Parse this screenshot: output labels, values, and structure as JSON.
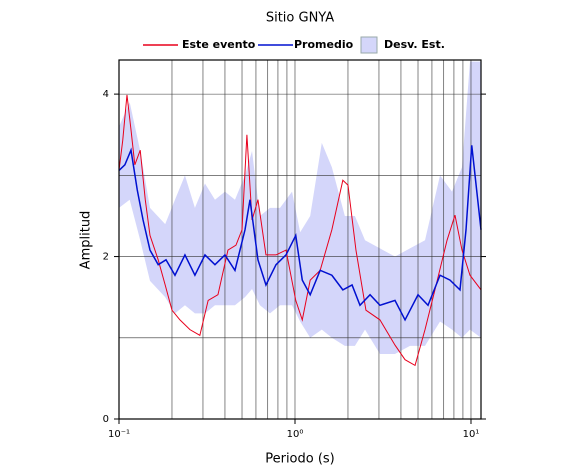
{
  "chart_data": {
    "type": "line",
    "title": "Sitio GNYA",
    "x_label": "Periodo (s)",
    "y_label": "Amplitud",
    "log_x": true,
    "grid": true,
    "legend": "top",
    "xlim": [
      0.1,
      11.4
    ],
    "ylim": [
      0,
      4.42
    ],
    "xticks": [
      {
        "value": 0.1,
        "label": "10⁻¹"
      },
      {
        "value": 1,
        "label": "10⁰"
      },
      {
        "value": 10,
        "label": "10¹"
      }
    ],
    "xminor": [
      0.2,
      0.3,
      0.4,
      0.5,
      0.6,
      0.7,
      0.8,
      0.9,
      2,
      3,
      4,
      5,
      6,
      7,
      8,
      9
    ],
    "yticks": [
      0,
      2,
      4
    ],
    "yminor": [
      1,
      3
    ],
    "series": [
      {
        "name": "Este evento",
        "color": "#e8001c",
        "x": [
          0.1,
          0.105,
          0.111,
          0.117,
          0.123,
          0.132,
          0.141,
          0.15,
          0.167,
          0.183,
          0.2,
          0.222,
          0.253,
          0.288,
          0.321,
          0.365,
          0.416,
          0.462,
          0.5,
          0.533,
          0.57,
          0.616,
          0.684,
          0.78,
          0.889,
          1.01,
          1.1,
          1.22,
          1.39,
          1.62,
          1.87,
          2.0,
          2.22,
          2.53,
          3.04,
          3.7,
          4.22,
          4.81,
          5.48,
          6.24,
          7.31,
          8.11,
          8.89,
          9.87,
          11.4
        ],
        "values": [
          3.06,
          3.43,
          3.99,
          3.56,
          3.13,
          3.31,
          2.7,
          2.26,
          1.96,
          1.65,
          1.34,
          1.22,
          1.1,
          1.03,
          1.46,
          1.53,
          2.08,
          2.14,
          2.33,
          3.5,
          2.45,
          2.7,
          2.02,
          2.02,
          2.08,
          1.46,
          1.22,
          1.71,
          1.83,
          2.33,
          2.94,
          2.88,
          2.08,
          1.34,
          1.22,
          0.91,
          0.73,
          0.66,
          1.1,
          1.59,
          2.2,
          2.51,
          2.08,
          1.77,
          1.59
        ]
      },
      {
        "name": "Promedio",
        "color": "#0010d0",
        "x": [
          0.1,
          0.108,
          0.117,
          0.127,
          0.137,
          0.15,
          0.167,
          0.185,
          0.208,
          0.237,
          0.27,
          0.308,
          0.351,
          0.4,
          0.456,
          0.52,
          0.555,
          0.616,
          0.684,
          0.78,
          0.889,
          1.01,
          1.1,
          1.22,
          1.39,
          1.62,
          1.87,
          2.11,
          2.34,
          2.67,
          3.04,
          3.7,
          4.22,
          5.0,
          5.7,
          6.67,
          7.6,
          8.66,
          9.37,
          10.1,
          11.4
        ],
        "values": [
          3.06,
          3.13,
          3.31,
          2.82,
          2.45,
          2.08,
          1.9,
          1.96,
          1.77,
          2.02,
          1.77,
          2.02,
          1.9,
          2.02,
          1.83,
          2.33,
          2.7,
          1.96,
          1.65,
          1.9,
          2.02,
          2.26,
          1.71,
          1.53,
          1.83,
          1.77,
          1.59,
          1.65,
          1.4,
          1.53,
          1.4,
          1.46,
          1.22,
          1.53,
          1.4,
          1.77,
          1.71,
          1.59,
          2.33,
          3.37,
          2.33
        ]
      }
    ],
    "band": {
      "name": "Desv. Est.",
      "color": "#d4d6fa",
      "x": [
        0.1,
        0.115,
        0.132,
        0.15,
        0.183,
        0.208,
        0.237,
        0.27,
        0.308,
        0.351,
        0.4,
        0.456,
        0.52,
        0.57,
        0.632,
        0.721,
        0.822,
        0.962,
        1.07,
        1.22,
        1.42,
        1.62,
        1.92,
        2.19,
        2.5,
        3.04,
        3.7,
        4.5,
        5.48,
        6.67,
        7.8,
        8.89,
        9.87,
        11.4
      ],
      "upper": [
        3.6,
        3.9,
        3.3,
        2.6,
        2.4,
        2.7,
        3.0,
        2.6,
        2.9,
        2.7,
        2.8,
        2.7,
        3.0,
        3.3,
        2.5,
        2.6,
        2.6,
        2.8,
        2.3,
        2.5,
        3.4,
        3.1,
        2.5,
        2.5,
        2.2,
        2.1,
        2.0,
        2.1,
        2.2,
        3.0,
        2.8,
        3.1,
        4.4,
        4.4
      ],
      "lower": [
        2.6,
        2.7,
        2.2,
        1.7,
        1.5,
        1.3,
        1.4,
        1.3,
        1.3,
        1.4,
        1.4,
        1.4,
        1.5,
        1.6,
        1.4,
        1.3,
        1.4,
        1.4,
        1.2,
        1.0,
        1.1,
        1.0,
        0.9,
        0.9,
        1.1,
        0.8,
        0.8,
        0.9,
        0.9,
        1.2,
        1.1,
        1.0,
        1.1,
        1.0
      ]
    }
  }
}
